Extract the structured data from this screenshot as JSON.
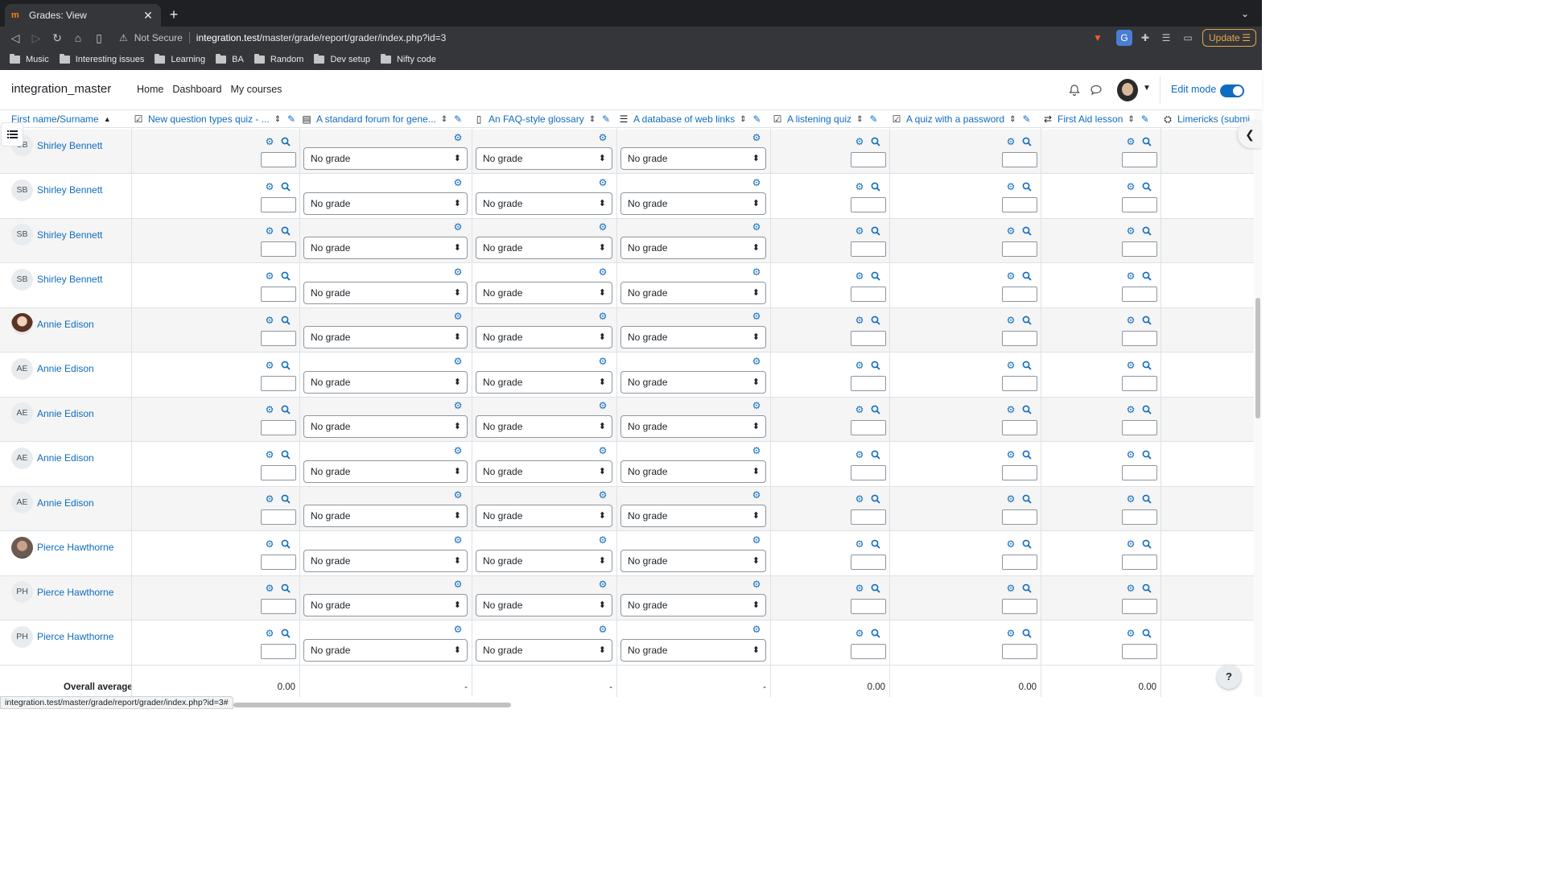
{
  "browser": {
    "tab_title": "Grades: View",
    "not_secure": "Not Secure",
    "url_host": "integration.test",
    "url_path": "/master/grade/report/grader/index.php?id=3",
    "update_label": "Update",
    "bookmarks": [
      "Music",
      "Interesting issues",
      "Learning",
      "BA",
      "Random",
      "Dev setup",
      "Nifty code"
    ],
    "status_url": "integration.test/master/grade/report/grader/index.php?id=3#"
  },
  "site": {
    "name": "integration_master",
    "nav": [
      "Home",
      "Dashboard",
      "My courses"
    ],
    "edit_mode_label": "Edit mode",
    "edit_mode_on": true
  },
  "grader": {
    "name_header_first": "First name",
    "name_header_sep": " / ",
    "name_header_last": "Surname",
    "columns": [
      {
        "label": "New question types quiz - ...",
        "icon": "quiz-icon",
        "type": "input"
      },
      {
        "label": "A standard forum for gene...",
        "icon": "forum-icon",
        "type": "select"
      },
      {
        "label": "An FAQ-style glossary",
        "icon": "glossary-icon",
        "type": "select"
      },
      {
        "label": "A database of web links",
        "icon": "database-icon",
        "type": "select"
      },
      {
        "label": "A listening quiz",
        "icon": "quiz-icon",
        "type": "input"
      },
      {
        "label": "A quiz with a password",
        "icon": "quiz-icon",
        "type": "input"
      },
      {
        "label": "First Aid lesson",
        "icon": "lesson-icon",
        "type": "input"
      },
      {
        "label": "Limericks (submi",
        "icon": "workshop-icon",
        "type": "none"
      }
    ],
    "no_grade_label": "No grade",
    "top_partial_select": "No grade",
    "students": [
      {
        "name": "Shirley Bennett",
        "initials": "SB",
        "photo": false
      },
      {
        "name": "Shirley Bennett",
        "initials": "SB",
        "photo": false
      },
      {
        "name": "Shirley Bennett",
        "initials": "SB",
        "photo": false
      },
      {
        "name": "Shirley Bennett",
        "initials": "SB",
        "photo": false
      },
      {
        "name": "Annie Edison",
        "initials": "AE",
        "photo": "f"
      },
      {
        "name": "Annie Edison",
        "initials": "AE",
        "photo": false
      },
      {
        "name": "Annie Edison",
        "initials": "AE",
        "photo": false
      },
      {
        "name": "Annie Edison",
        "initials": "AE",
        "photo": false
      },
      {
        "name": "Annie Edison",
        "initials": "AE",
        "photo": false
      },
      {
        "name": "Pierce Hawthorne",
        "initials": "PH",
        "photo": "m"
      },
      {
        "name": "Pierce Hawthorne",
        "initials": "PH",
        "photo": false
      },
      {
        "name": "Pierce Hawthorne",
        "initials": "PH",
        "photo": false
      }
    ],
    "overall_average_label": "Overall average",
    "overall_average_values": [
      "0.00",
      "-",
      "-",
      "-",
      "0.00",
      "0.00",
      "0.00",
      ""
    ]
  },
  "help_label": "?"
}
